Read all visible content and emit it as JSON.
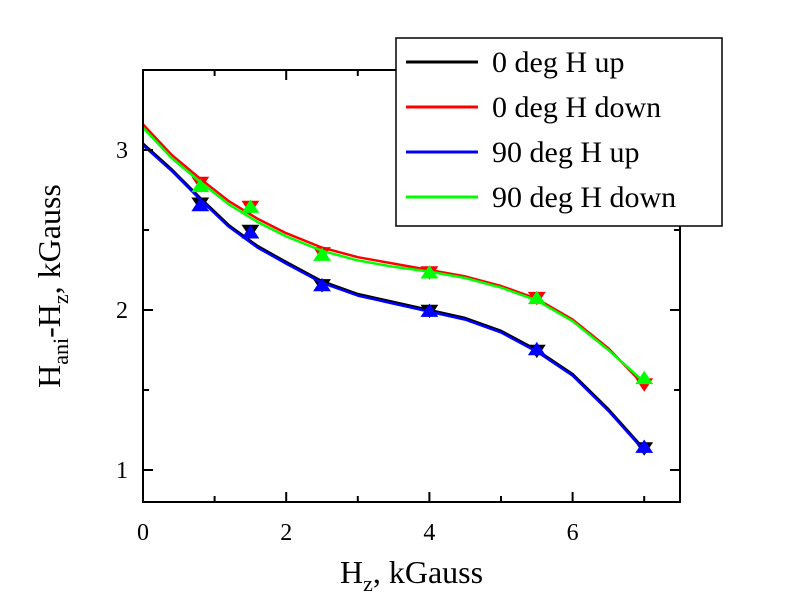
{
  "chart_data": {
    "type": "line",
    "title": "",
    "xlabel": {
      "main": "H",
      "sub": "z",
      "rest": ", kGauss"
    },
    "ylabel": {
      "p1": "H",
      "s1": "ani",
      "p2": "-H",
      "s2": "z",
      "p3": ", kGauss"
    },
    "xlim": [
      0,
      7.5
    ],
    "ylim": [
      0.8,
      3.5
    ],
    "xticks": [
      0,
      2,
      4,
      6
    ],
    "yticks": [
      1,
      2,
      3
    ],
    "grid": false,
    "legend_position": "top-right",
    "series": [
      {
        "name": "0 deg H up",
        "color": "#000000",
        "marker": "down-triangle",
        "x": [
          0.8,
          1.5,
          2.5,
          4.0,
          5.5,
          7.0
        ],
        "y": [
          2.67,
          2.5,
          2.16,
          2.0,
          1.75,
          1.14
        ],
        "fit": [
          [
            0,
            3.04
          ],
          [
            0.4,
            2.88
          ],
          [
            0.8,
            2.7
          ],
          [
            1.2,
            2.53
          ],
          [
            1.6,
            2.4
          ],
          [
            2.0,
            2.3
          ],
          [
            2.5,
            2.18
          ],
          [
            3.0,
            2.1
          ],
          [
            3.5,
            2.05
          ],
          [
            4.0,
            2.0
          ],
          [
            4.5,
            1.95
          ],
          [
            5.0,
            1.87
          ],
          [
            5.5,
            1.75
          ],
          [
            6.0,
            1.6
          ],
          [
            6.5,
            1.38
          ],
          [
            7.0,
            1.13
          ]
        ]
      },
      {
        "name": "0 deg H down",
        "color": "#ff0000",
        "marker": "down-triangle",
        "x": [
          0.8,
          1.5,
          2.5,
          4.0,
          5.5,
          7.0
        ],
        "y": [
          2.8,
          2.65,
          2.36,
          2.24,
          2.08,
          1.54
        ],
        "fit": [
          [
            0,
            3.16
          ],
          [
            0.4,
            2.97
          ],
          [
            0.8,
            2.82
          ],
          [
            1.2,
            2.68
          ],
          [
            1.6,
            2.57
          ],
          [
            2.0,
            2.48
          ],
          [
            2.5,
            2.39
          ],
          [
            3.0,
            2.33
          ],
          [
            3.5,
            2.29
          ],
          [
            4.0,
            2.25
          ],
          [
            4.5,
            2.21
          ],
          [
            5.0,
            2.15
          ],
          [
            5.5,
            2.07
          ],
          [
            6.0,
            1.94
          ],
          [
            6.5,
            1.76
          ],
          [
            7.0,
            1.53
          ]
        ]
      },
      {
        "name": "90 deg H up",
        "color": "#0000ff",
        "marker": "up-triangle",
        "x": [
          0.8,
          1.5,
          2.5,
          4.0,
          5.5,
          7.0
        ],
        "y": [
          2.65,
          2.48,
          2.15,
          1.99,
          1.75,
          1.14
        ],
        "fit": [
          [
            0,
            3.03
          ],
          [
            0.4,
            2.87
          ],
          [
            0.8,
            2.69
          ],
          [
            1.2,
            2.52
          ],
          [
            1.6,
            2.39
          ],
          [
            2.0,
            2.29
          ],
          [
            2.5,
            2.17
          ],
          [
            3.0,
            2.09
          ],
          [
            3.5,
            2.04
          ],
          [
            4.0,
            1.99
          ],
          [
            4.5,
            1.94
          ],
          [
            5.0,
            1.86
          ],
          [
            5.5,
            1.74
          ],
          [
            6.0,
            1.59
          ],
          [
            6.5,
            1.37
          ],
          [
            7.0,
            1.12
          ]
        ]
      },
      {
        "name": "90 deg H down",
        "color": "#00ff00",
        "marker": "up-triangle",
        "x": [
          0.8,
          1.5,
          2.5,
          4.0,
          5.5,
          7.0
        ],
        "y": [
          2.77,
          2.64,
          2.34,
          2.23,
          2.07,
          1.57
        ],
        "fit": [
          [
            0,
            3.14
          ],
          [
            0.4,
            2.95
          ],
          [
            0.8,
            2.8
          ],
          [
            1.2,
            2.66
          ],
          [
            1.6,
            2.55
          ],
          [
            2.0,
            2.46
          ],
          [
            2.5,
            2.37
          ],
          [
            3.0,
            2.31
          ],
          [
            3.5,
            2.27
          ],
          [
            4.0,
            2.24
          ],
          [
            4.5,
            2.2
          ],
          [
            5.0,
            2.14
          ],
          [
            5.5,
            2.06
          ],
          [
            6.0,
            1.93
          ],
          [
            6.5,
            1.75
          ],
          [
            7.0,
            1.55
          ]
        ]
      }
    ]
  }
}
